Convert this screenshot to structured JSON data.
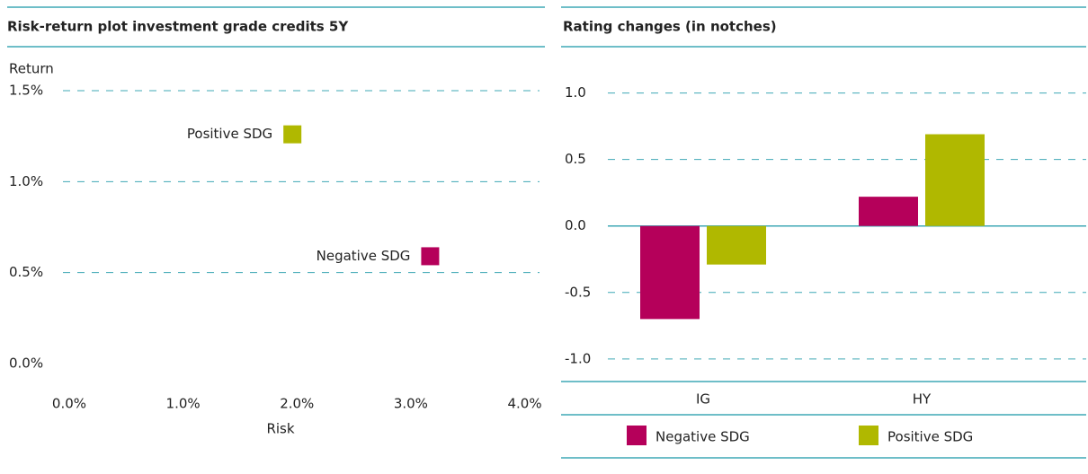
{
  "chart_data": [
    {
      "type": "scatter",
      "title": "Risk-return plot investment grade credits 5Y",
      "x_label": "Risk",
      "y_label": "Return",
      "series": [
        {
          "name": "Positive SDG",
          "color": "#b0b800",
          "x": [
            1.96
          ],
          "values": [
            1.26
          ]
        },
        {
          "name": "Negative SDG",
          "color": "#b5005a",
          "x": [
            3.17
          ],
          "values": [
            0.59
          ]
        }
      ],
      "xlim": [
        -0.055,
        4.13
      ],
      "xticks": [
        {
          "value": 0,
          "label": "0.0%"
        },
        {
          "value": 1,
          "label": "1.0%"
        },
        {
          "value": 2,
          "label": "2.0%"
        },
        {
          "value": 3,
          "label": "3.0%"
        },
        {
          "value": 4,
          "label": "4.0%"
        }
      ],
      "ylim": [
        0,
        1.5
      ],
      "yticks": [
        {
          "value": 0,
          "label": "0.0%"
        },
        {
          "value": 0.5,
          "label": "0.5%"
        },
        {
          "value": 1,
          "label": "1.0%"
        },
        {
          "value": 1.5,
          "label": "1.5%"
        }
      ],
      "grid": true
    },
    {
      "type": "bar",
      "title": "Rating changes (in notches)",
      "categories": [
        "IG",
        "HY"
      ],
      "series": [
        {
          "name": "Negative SDG",
          "color": "#b5005a",
          "values": [
            -0.7,
            0.22
          ]
        },
        {
          "name": "Positive SDG",
          "color": "#b0b800",
          "values": [
            -0.29,
            0.69
          ]
        }
      ],
      "ylim": [
        -1.17,
        1.2
      ],
      "yticks": [
        {
          "value": 1,
          "label": "1.0"
        },
        0.5,
        {
          "value": 0,
          "label": "0.0"
        },
        -0.5,
        {
          "value": -1,
          "label": "-1.0"
        }
      ],
      "grid": true,
      "legend": "bottom"
    }
  ]
}
